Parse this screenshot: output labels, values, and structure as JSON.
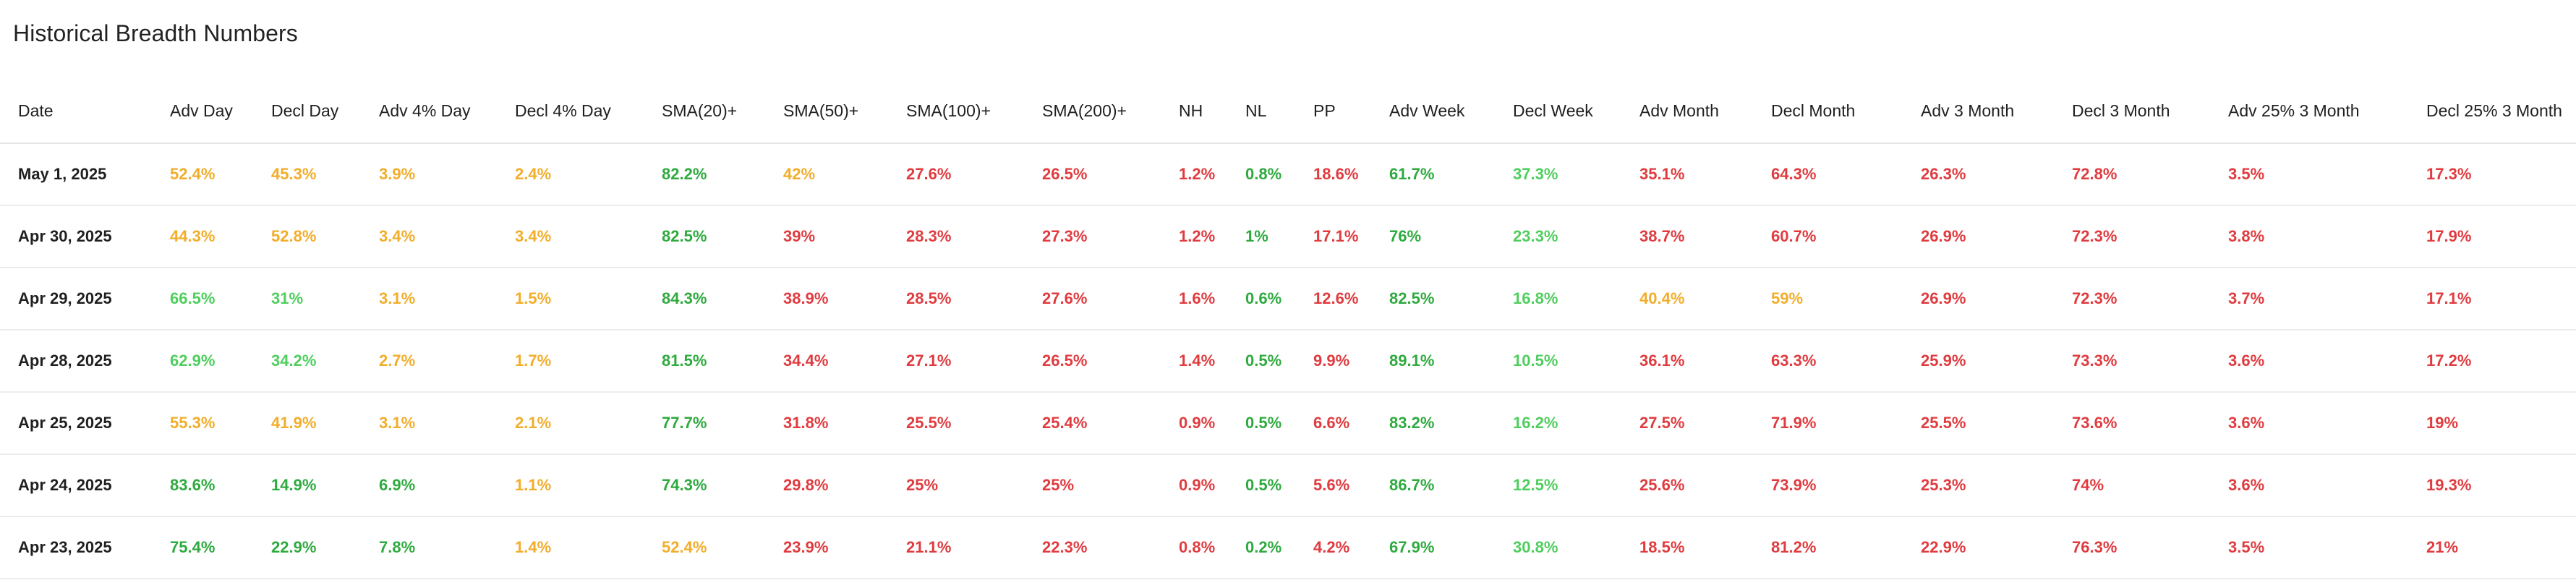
{
  "page": {
    "title": "Historical Breadth Numbers"
  },
  "colors": {
    "green": "#2faa3f",
    "lgreen": "#4fce5e",
    "orange": "#f2ad2a",
    "red": "#e03b3f"
  },
  "table": {
    "columns": [
      "Date",
      "Adv Day",
      "Decl Day",
      "Adv 4% Day",
      "Decl 4% Day",
      "SMA(20)+",
      "SMA(50)+",
      "SMA(100)+",
      "SMA(200)+",
      "NH",
      "NL",
      "PP",
      "Adv Week",
      "Decl Week",
      "Adv Month",
      "Decl Month",
      "Adv 3 Month",
      "Decl 3 Month",
      "Adv 25% 3 Month",
      "Decl 25% 3 Month"
    ],
    "rows": [
      {
        "date": "May 1, 2025",
        "cells": [
          {
            "v": "52.4%",
            "c": "orange"
          },
          {
            "v": "45.3%",
            "c": "orange"
          },
          {
            "v": "3.9%",
            "c": "orange"
          },
          {
            "v": "2.4%",
            "c": "orange"
          },
          {
            "v": "82.2%",
            "c": "green"
          },
          {
            "v": "42%",
            "c": "orange"
          },
          {
            "v": "27.6%",
            "c": "red"
          },
          {
            "v": "26.5%",
            "c": "red"
          },
          {
            "v": "1.2%",
            "c": "red"
          },
          {
            "v": "0.8%",
            "c": "green"
          },
          {
            "v": "18.6%",
            "c": "red"
          },
          {
            "v": "61.7%",
            "c": "green"
          },
          {
            "v": "37.3%",
            "c": "lgreen"
          },
          {
            "v": "35.1%",
            "c": "red"
          },
          {
            "v": "64.3%",
            "c": "red"
          },
          {
            "v": "26.3%",
            "c": "red"
          },
          {
            "v": "72.8%",
            "c": "red"
          },
          {
            "v": "3.5%",
            "c": "red"
          },
          {
            "v": "17.3%",
            "c": "red"
          }
        ]
      },
      {
        "date": "Apr 30, 2025",
        "cells": [
          {
            "v": "44.3%",
            "c": "orange"
          },
          {
            "v": "52.8%",
            "c": "orange"
          },
          {
            "v": "3.4%",
            "c": "orange"
          },
          {
            "v": "3.4%",
            "c": "orange"
          },
          {
            "v": "82.5%",
            "c": "green"
          },
          {
            "v": "39%",
            "c": "red"
          },
          {
            "v": "28.3%",
            "c": "red"
          },
          {
            "v": "27.3%",
            "c": "red"
          },
          {
            "v": "1.2%",
            "c": "red"
          },
          {
            "v": "1%",
            "c": "green"
          },
          {
            "v": "17.1%",
            "c": "red"
          },
          {
            "v": "76%",
            "c": "green"
          },
          {
            "v": "23.3%",
            "c": "lgreen"
          },
          {
            "v": "38.7%",
            "c": "red"
          },
          {
            "v": "60.7%",
            "c": "red"
          },
          {
            "v": "26.9%",
            "c": "red"
          },
          {
            "v": "72.3%",
            "c": "red"
          },
          {
            "v": "3.8%",
            "c": "red"
          },
          {
            "v": "17.9%",
            "c": "red"
          }
        ]
      },
      {
        "date": "Apr 29, 2025",
        "cells": [
          {
            "v": "66.5%",
            "c": "lgreen"
          },
          {
            "v": "31%",
            "c": "lgreen"
          },
          {
            "v": "3.1%",
            "c": "orange"
          },
          {
            "v": "1.5%",
            "c": "orange"
          },
          {
            "v": "84.3%",
            "c": "green"
          },
          {
            "v": "38.9%",
            "c": "red"
          },
          {
            "v": "28.5%",
            "c": "red"
          },
          {
            "v": "27.6%",
            "c": "red"
          },
          {
            "v": "1.6%",
            "c": "red"
          },
          {
            "v": "0.6%",
            "c": "green"
          },
          {
            "v": "12.6%",
            "c": "red"
          },
          {
            "v": "82.5%",
            "c": "green"
          },
          {
            "v": "16.8%",
            "c": "lgreen"
          },
          {
            "v": "40.4%",
            "c": "orange"
          },
          {
            "v": "59%",
            "c": "orange"
          },
          {
            "v": "26.9%",
            "c": "red"
          },
          {
            "v": "72.3%",
            "c": "red"
          },
          {
            "v": "3.7%",
            "c": "red"
          },
          {
            "v": "17.1%",
            "c": "red"
          }
        ]
      },
      {
        "date": "Apr 28, 2025",
        "cells": [
          {
            "v": "62.9%",
            "c": "lgreen"
          },
          {
            "v": "34.2%",
            "c": "lgreen"
          },
          {
            "v": "2.7%",
            "c": "orange"
          },
          {
            "v": "1.7%",
            "c": "orange"
          },
          {
            "v": "81.5%",
            "c": "green"
          },
          {
            "v": "34.4%",
            "c": "red"
          },
          {
            "v": "27.1%",
            "c": "red"
          },
          {
            "v": "26.5%",
            "c": "red"
          },
          {
            "v": "1.4%",
            "c": "red"
          },
          {
            "v": "0.5%",
            "c": "green"
          },
          {
            "v": "9.9%",
            "c": "red"
          },
          {
            "v": "89.1%",
            "c": "green"
          },
          {
            "v": "10.5%",
            "c": "lgreen"
          },
          {
            "v": "36.1%",
            "c": "red"
          },
          {
            "v": "63.3%",
            "c": "red"
          },
          {
            "v": "25.9%",
            "c": "red"
          },
          {
            "v": "73.3%",
            "c": "red"
          },
          {
            "v": "3.6%",
            "c": "red"
          },
          {
            "v": "17.2%",
            "c": "red"
          }
        ]
      },
      {
        "date": "Apr 25, 2025",
        "cells": [
          {
            "v": "55.3%",
            "c": "orange"
          },
          {
            "v": "41.9%",
            "c": "orange"
          },
          {
            "v": "3.1%",
            "c": "orange"
          },
          {
            "v": "2.1%",
            "c": "orange"
          },
          {
            "v": "77.7%",
            "c": "green"
          },
          {
            "v": "31.8%",
            "c": "red"
          },
          {
            "v": "25.5%",
            "c": "red"
          },
          {
            "v": "25.4%",
            "c": "red"
          },
          {
            "v": "0.9%",
            "c": "red"
          },
          {
            "v": "0.5%",
            "c": "green"
          },
          {
            "v": "6.6%",
            "c": "red"
          },
          {
            "v": "83.2%",
            "c": "green"
          },
          {
            "v": "16.2%",
            "c": "lgreen"
          },
          {
            "v": "27.5%",
            "c": "red"
          },
          {
            "v": "71.9%",
            "c": "red"
          },
          {
            "v": "25.5%",
            "c": "red"
          },
          {
            "v": "73.6%",
            "c": "red"
          },
          {
            "v": "3.6%",
            "c": "red"
          },
          {
            "v": "19%",
            "c": "red"
          }
        ]
      },
      {
        "date": "Apr 24, 2025",
        "cells": [
          {
            "v": "83.6%",
            "c": "green"
          },
          {
            "v": "14.9%",
            "c": "green"
          },
          {
            "v": "6.9%",
            "c": "green"
          },
          {
            "v": "1.1%",
            "c": "orange"
          },
          {
            "v": "74.3%",
            "c": "green"
          },
          {
            "v": "29.8%",
            "c": "red"
          },
          {
            "v": "25%",
            "c": "red"
          },
          {
            "v": "25%",
            "c": "red"
          },
          {
            "v": "0.9%",
            "c": "red"
          },
          {
            "v": "0.5%",
            "c": "green"
          },
          {
            "v": "5.6%",
            "c": "red"
          },
          {
            "v": "86.7%",
            "c": "green"
          },
          {
            "v": "12.5%",
            "c": "lgreen"
          },
          {
            "v": "25.6%",
            "c": "red"
          },
          {
            "v": "73.9%",
            "c": "red"
          },
          {
            "v": "25.3%",
            "c": "red"
          },
          {
            "v": "74%",
            "c": "red"
          },
          {
            "v": "3.6%",
            "c": "red"
          },
          {
            "v": "19.3%",
            "c": "red"
          }
        ]
      },
      {
        "date": "Apr 23, 2025",
        "cells": [
          {
            "v": "75.4%",
            "c": "green"
          },
          {
            "v": "22.9%",
            "c": "green"
          },
          {
            "v": "7.8%",
            "c": "green"
          },
          {
            "v": "1.4%",
            "c": "orange"
          },
          {
            "v": "52.4%",
            "c": "orange"
          },
          {
            "v": "23.9%",
            "c": "red"
          },
          {
            "v": "21.1%",
            "c": "red"
          },
          {
            "v": "22.3%",
            "c": "red"
          },
          {
            "v": "0.8%",
            "c": "red"
          },
          {
            "v": "0.2%",
            "c": "green"
          },
          {
            "v": "4.2%",
            "c": "red"
          },
          {
            "v": "67.9%",
            "c": "green"
          },
          {
            "v": "30.8%",
            "c": "lgreen"
          },
          {
            "v": "18.5%",
            "c": "red"
          },
          {
            "v": "81.2%",
            "c": "red"
          },
          {
            "v": "22.9%",
            "c": "red"
          },
          {
            "v": "76.3%",
            "c": "red"
          },
          {
            "v": "3.5%",
            "c": "red"
          },
          {
            "v": "21%",
            "c": "red"
          }
        ]
      }
    ]
  }
}
